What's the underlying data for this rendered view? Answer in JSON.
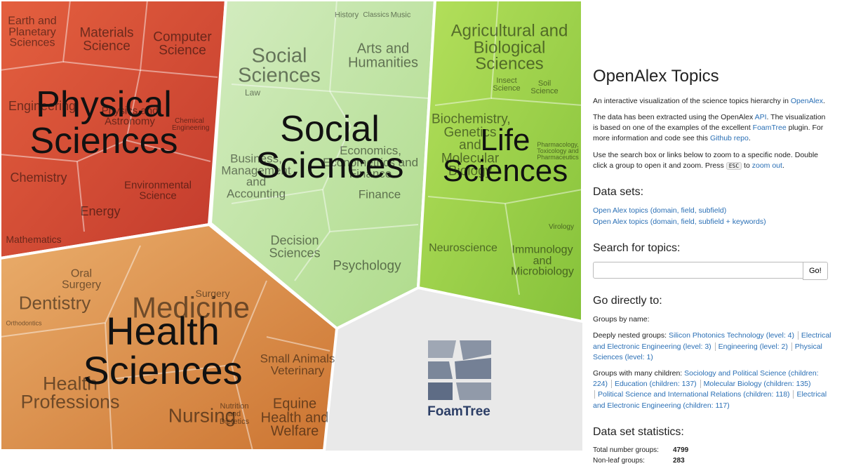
{
  "treemap": {
    "groups": [
      {
        "label": "Physical Sciences",
        "fields": [
          "Earth and Planetary Sciences",
          "Materials Science",
          "Computer Science",
          "Engineering",
          "Physics and Astronomy",
          "Chemical Engineering",
          "Chemistry",
          "Environmental Science",
          "Energy",
          "Mathematics"
        ]
      },
      {
        "label": "Social Sciences",
        "fields": [
          "Social Sciences",
          "Arts and Humanities",
          "History",
          "Classics",
          "Music",
          "Law",
          "Economics, Econometrics and Finance",
          "Business, Management and Accounting",
          "Finance",
          "Decision Sciences",
          "Psychology"
        ]
      },
      {
        "label": "Life Sciences",
        "fields": [
          "Agricultural and Biological Sciences",
          "Insect Science",
          "Soil Science",
          "Biochemistry, Genetics and Molecular Biology",
          "Pharmacology, Toxicology and Pharmaceutics",
          "Neuroscience",
          "Virology",
          "Immunology and Microbiology"
        ]
      },
      {
        "label": "Health Sciences",
        "fields": [
          "Medicine",
          "Oral Surgery",
          "Dentistry",
          "Surgery",
          "Orthodontics",
          "Health Professions",
          "Nursing",
          "Nutrition and Dietetics",
          "Small Animals Veterinary",
          "Equine Health and Welfare"
        ]
      }
    ],
    "logo": "FoamTree"
  },
  "sidebar": {
    "title": "OpenAlex Topics",
    "intro": [
      "An interactive visualization of the science topics hierarchy in ",
      "OpenAlex",
      "."
    ],
    "about": [
      "The data has been extracted using the OpenAlex ",
      "API",
      ". The visualization is based on one of the examples of the excellent ",
      "FoamTree",
      " plugin. For more information and code see this ",
      "Github repo",
      "."
    ],
    "usage": [
      "Use the search box or links below to zoom to a specific node. Double click a group to open it and zoom. Press ",
      "ESC",
      " to ",
      "zoom out",
      "."
    ],
    "datasets_heading": "Data sets:",
    "datasets": [
      "Open Alex topics (domain, field, subfield)",
      "Open Alex topics (domain, field, subfield + keywords)"
    ],
    "search_heading": "Search for topics:",
    "search_button": "Go!",
    "goto_heading": "Go directly to:",
    "by_name": "Groups by name:",
    "nested_label": "Deeply nested groups:",
    "nested": [
      "Silicon Photonics Technology (level: 4)",
      "Electrical and Electronic Engineering (level: 3)",
      "Engineering (level: 2)",
      "Physical Sciences (level: 1)"
    ],
    "children_label": "Groups with many children:",
    "children": [
      "Sociology and Political Science (children: 224)",
      "Education (children: 137)",
      "Molecular Biology (children: 135)",
      "Political Science and International Relations (children: 118)",
      "Electrical and Electronic Engineering (children: 117)"
    ],
    "stats_heading": "Data set statistics:",
    "stats": [
      [
        "Total number groups:",
        4799
      ],
      [
        "Non-leaf groups:",
        283
      ]
    ]
  }
}
